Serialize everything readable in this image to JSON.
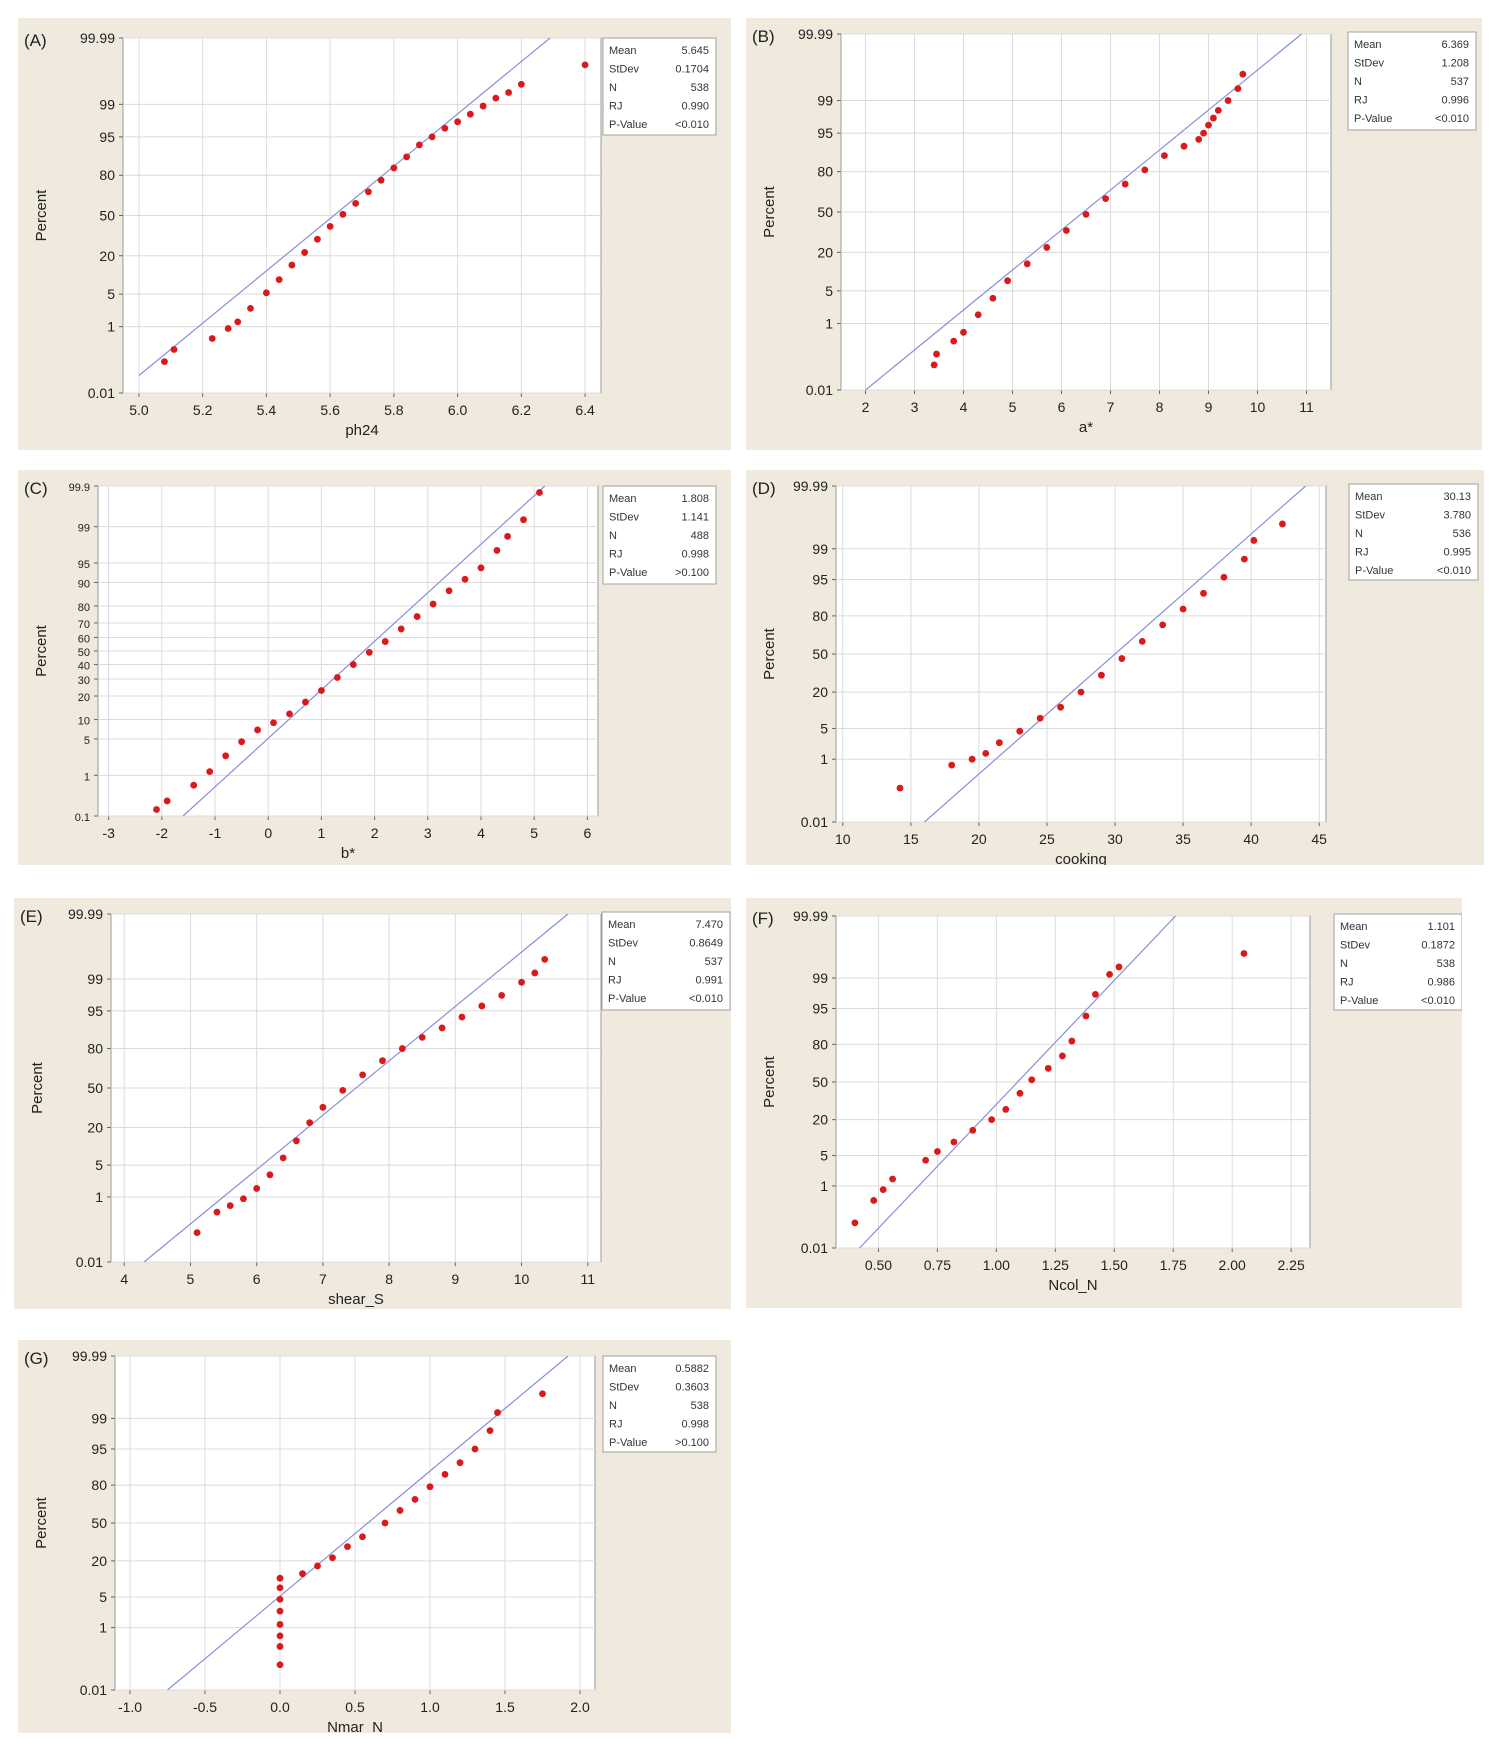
{
  "ylabel": "Percent",
  "panels": [
    {
      "label": "(A)",
      "stats": {
        "Mean": "5.645",
        "StDev": "0.1704",
        "N": "538",
        "RJ": "0.990",
        "P-Value": "<0.010"
      }
    },
    {
      "label": "(B)",
      "stats": {
        "Mean": "6.369",
        "StDev": "1.208",
        "N": "537",
        "RJ": "0.996",
        "P-Value": "<0.010"
      }
    },
    {
      "label": "(C)",
      "stats": {
        "Mean": "1.808",
        "StDev": "1.141",
        "N": "488",
        "RJ": "0.998",
        "P-Value": ">0.100"
      }
    },
    {
      "label": "(D)",
      "stats": {
        "Mean": "30.13",
        "StDev": "3.780",
        "N": "536",
        "RJ": "0.995",
        "P-Value": "<0.010"
      }
    },
    {
      "label": "(E)",
      "stats": {
        "Mean": "7.470",
        "StDev": "0.8649",
        "N": "537",
        "RJ": "0.991",
        "P-Value": "<0.010"
      }
    },
    {
      "label": "(F)",
      "stats": {
        "Mean": "1.101",
        "StDev": "0.1872",
        "N": "538",
        "RJ": "0.986",
        "P-Value": "<0.010"
      }
    },
    {
      "label": "(G)",
      "stats": {
        "Mean": "0.5882",
        "StDev": "0.3603",
        "N": "538",
        "RJ": "0.998",
        "P-Value": ">0.100"
      }
    }
  ],
  "chart_data": [
    {
      "type": "scatter",
      "panel": "(A)",
      "xlabel": "ph24",
      "ylabel": "Percent",
      "xlim": [
        4.95,
        6.45
      ],
      "xticks": [
        "5.0",
        "5.2",
        "5.4",
        "5.6",
        "5.8",
        "6.0",
        "6.2",
        "6.4"
      ],
      "yticks": [
        "0.01",
        "1",
        "5",
        "20",
        "50",
        "80",
        "95",
        "99",
        "99.99"
      ],
      "series": [
        {
          "kind": "fit-line",
          "x": [
            5.0,
            6.29
          ],
          "y": [
            0.04,
            99.99
          ]
        },
        {
          "kind": "points",
          "x": [
            5.08,
            5.11,
            5.23,
            5.28,
            5.31,
            5.35,
            5.4,
            5.44,
            5.48,
            5.52,
            5.56,
            5.6,
            5.64,
            5.68,
            5.72,
            5.76,
            5.8,
            5.84,
            5.88,
            5.92,
            5.96,
            6.0,
            6.04,
            6.08,
            6.12,
            6.16,
            6.2,
            6.4
          ],
          "y": [
            0.11,
            0.25,
            0.5,
            0.9,
            1.3,
            2.6,
            5.3,
            9,
            15,
            22,
            31,
            41,
            51,
            60,
            69,
            77,
            84,
            89,
            93,
            95,
            96.6,
            97.5,
            98.3,
            98.9,
            99.3,
            99.5,
            99.7,
            99.92
          ]
        }
      ]
    },
    {
      "type": "scatter",
      "panel": "(B)",
      "xlabel": "a*",
      "ylabel": "Percent",
      "xlim": [
        1.5,
        11.5
      ],
      "xticks": [
        "2",
        "3",
        "4",
        "5",
        "6",
        "7",
        "8",
        "9",
        "10",
        "11"
      ],
      "yticks": [
        "0.01",
        "1",
        "5",
        "20",
        "50",
        "80",
        "95",
        "99",
        "99.99"
      ],
      "series": [
        {
          "kind": "fit-line",
          "x": [
            2.0,
            10.9
          ],
          "y": [
            0.01,
            99.99
          ]
        },
        {
          "kind": "points",
          "x": [
            3.4,
            3.45,
            3.8,
            4.0,
            4.3,
            4.6,
            4.9,
            5.3,
            5.7,
            6.1,
            6.5,
            6.9,
            7.3,
            7.7,
            8.1,
            8.5,
            8.8,
            8.9,
            9.0,
            9.1,
            9.2,
            9.4,
            9.6,
            9.7
          ],
          "y": [
            0.07,
            0.15,
            0.35,
            0.6,
            1.6,
            3.6,
            7.6,
            14,
            23,
            35,
            48,
            61,
            72,
            81,
            88,
            91.5,
            93.5,
            95,
            96.5,
            97.5,
            98.3,
            99.0,
            99.5,
            99.8
          ]
        }
      ]
    },
    {
      "type": "scatter",
      "panel": "(C)",
      "xlabel": "b*",
      "ylabel": "Percent",
      "xlim": [
        -3.2,
        6.2
      ],
      "xticks": [
        "-3",
        "-2",
        "-1",
        "0",
        "1",
        "2",
        "3",
        "4",
        "5",
        "6"
      ],
      "yticks": [
        "0.1",
        "1",
        "5",
        "10",
        "20",
        "30",
        "40",
        "50",
        "60",
        "70",
        "80",
        "90",
        "95",
        "99",
        "99.9"
      ],
      "series": [
        {
          "kind": "fit-line",
          "x": [
            -1.6,
            5.2
          ],
          "y": [
            0.1,
            99.9
          ]
        },
        {
          "kind": "points",
          "x": [
            -2.1,
            -1.9,
            -1.4,
            -1.1,
            -0.8,
            -0.5,
            -0.2,
            0.1,
            0.4,
            0.7,
            1.0,
            1.3,
            1.6,
            1.9,
            2.2,
            2.5,
            2.8,
            3.1,
            3.4,
            3.7,
            4.0,
            4.3,
            4.5,
            4.8,
            5.1
          ],
          "y": [
            0.15,
            0.25,
            0.6,
            1.2,
            2.5,
            4.5,
            7,
            9,
            12,
            17,
            23,
            31,
            40,
            49,
            57,
            66,
            74,
            81,
            87,
            91,
            94,
            97,
            98.4,
            99.3,
            99.85
          ]
        }
      ]
    },
    {
      "type": "scatter",
      "panel": "(D)",
      "xlabel": "cooking",
      "ylabel": "Percent",
      "xlim": [
        9.5,
        45.5
      ],
      "xticks": [
        "10",
        "15",
        "20",
        "25",
        "30",
        "35",
        "40",
        "45"
      ],
      "yticks": [
        "0.01",
        "1",
        "5",
        "20",
        "50",
        "80",
        "95",
        "99",
        "99.99"
      ],
      "series": [
        {
          "kind": "fit-line",
          "x": [
            16.0,
            44.0
          ],
          "y": [
            0.01,
            99.99
          ]
        },
        {
          "kind": "points",
          "x": [
            14.2,
            18.0,
            19.5,
            20.5,
            21.5,
            23,
            24.5,
            26,
            27.5,
            29,
            30.5,
            32,
            33.5,
            35,
            36.5,
            38,
            39.5,
            40.2,
            42.3
          ],
          "y": [
            0.15,
            0.7,
            1.0,
            1.4,
            2.5,
            4.4,
            7.8,
            12,
            20,
            32,
            46,
            61,
            74,
            84,
            91,
            95.5,
            98.2,
            99.4,
            99.8
          ]
        }
      ]
    },
    {
      "type": "scatter",
      "panel": "(E)",
      "xlabel": "shear_S",
      "ylabel": "Percent",
      "xlim": [
        3.8,
        11.2
      ],
      "xticks": [
        "4",
        "5",
        "6",
        "7",
        "8",
        "9",
        "10",
        "11"
      ],
      "yticks": [
        "0.01",
        "1",
        "5",
        "20",
        "50",
        "80",
        "95",
        "99",
        "99.99"
      ],
      "series": [
        {
          "kind": "fit-line",
          "x": [
            4.3,
            10.7
          ],
          "y": [
            0.01,
            99.99
          ]
        },
        {
          "kind": "points",
          "x": [
            5.1,
            5.4,
            5.6,
            5.8,
            6.0,
            6.2,
            6.4,
            6.6,
            6.8,
            7.0,
            7.3,
            7.6,
            7.9,
            8.2,
            8.5,
            8.8,
            9.1,
            9.4,
            9.7,
            10.0,
            10.2,
            10.35
          ],
          "y": [
            0.1,
            0.4,
            0.6,
            0.9,
            1.6,
            3.2,
            6.8,
            13,
            23,
            34,
            48,
            61,
            72,
            80,
            86,
            90,
            93.5,
            96,
            97.6,
            98.8,
            99.3,
            99.7
          ]
        }
      ]
    },
    {
      "type": "scatter",
      "panel": "(F)",
      "xlabel": "Ncol_N",
      "ylabel": "Percent",
      "xlim": [
        0.32,
        2.33
      ],
      "xticks": [
        "0.50",
        "0.75",
        "1.00",
        "1.25",
        "1.50",
        "1.75",
        "2.00",
        "2.25"
      ],
      "yticks": [
        "0.01",
        "1",
        "5",
        "20",
        "50",
        "80",
        "95",
        "99",
        "99.99"
      ],
      "series": [
        {
          "kind": "fit-line",
          "x": [
            0.42,
            1.76
          ],
          "y": [
            0.01,
            99.99
          ]
        },
        {
          "kind": "points",
          "x": [
            0.4,
            0.48,
            0.52,
            0.56,
            0.7,
            0.75,
            0.82,
            0.9,
            0.98,
            1.04,
            1.1,
            1.15,
            1.22,
            1.28,
            1.32,
            1.38,
            1.42,
            1.48,
            1.52,
            2.05
          ],
          "y": [
            0.08,
            0.4,
            0.8,
            1.5,
            4,
            6,
            9,
            14,
            20,
            27,
            40,
            52,
            62,
            72,
            82,
            93,
            97.5,
            99.2,
            99.5,
            99.8
          ]
        }
      ]
    },
    {
      "type": "scatter",
      "panel": "(G)",
      "xlabel": "Nmar_N",
      "ylabel": "Percent",
      "xlim": [
        -1.1,
        2.1
      ],
      "xticks": [
        "-1.0",
        "-0.5",
        "0.0",
        "0.5",
        "1.0",
        "1.5",
        "2.0"
      ],
      "yticks": [
        "0.01",
        "1",
        "5",
        "20",
        "50",
        "80",
        "95",
        "99",
        "99.99"
      ],
      "series": [
        {
          "kind": "fit-line",
          "x": [
            -0.75,
            1.92
          ],
          "y": [
            0.01,
            99.99
          ]
        },
        {
          "kind": "points",
          "x": [
            0.0,
            0.0,
            0.0,
            0.0,
            0.0,
            0.0,
            0.0,
            0.0,
            0.15,
            0.25,
            0.35,
            0.45,
            0.55,
            0.7,
            0.8,
            0.9,
            1.0,
            1.1,
            1.2,
            1.3,
            1.4,
            1.45,
            1.75
          ],
          "y": [
            0.08,
            0.3,
            0.6,
            1.2,
            2.5,
            4.5,
            7.5,
            11,
            13,
            17,
            22,
            30,
            38,
            50,
            61,
            70,
            79,
            86,
            91,
            95,
            98,
            99.3,
            99.8
          ]
        }
      ]
    }
  ]
}
